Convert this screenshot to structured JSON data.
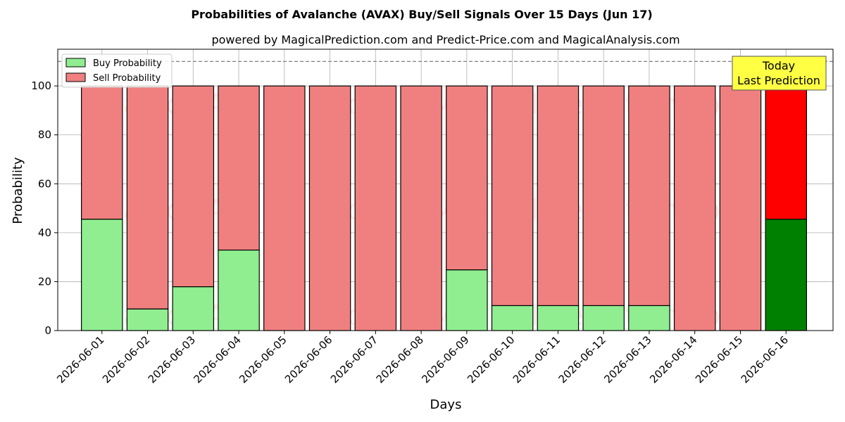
{
  "chart_data": {
    "type": "bar",
    "stacked": true,
    "title": "Probabilities of Avalanche (AVAX) Buy/Sell Signals Over 15 Days (Jun 17)",
    "subtitle": "powered by MagicalPrediction.com and Predict-Price.com and MagicalAnalysis.com",
    "xlabel": "Days",
    "ylabel": "Probability",
    "ylim": [
      0,
      115
    ],
    "yticks": [
      0,
      20,
      40,
      60,
      80,
      100
    ],
    "reference_line": 110,
    "grid": true,
    "legend_position": "top-left",
    "categories": [
      "2026-06-01",
      "2026-06-02",
      "2026-06-03",
      "2026-06-04",
      "2026-06-05",
      "2026-06-06",
      "2026-06-07",
      "2026-06-08",
      "2026-06-09",
      "2026-06-10",
      "2026-06-11",
      "2026-06-12",
      "2026-06-13",
      "2026-06-14",
      "2026-06-15",
      "2026-06-16"
    ],
    "series": [
      {
        "name": "Buy Probability",
        "color": "#90ee90",
        "highlight_color": "#008000",
        "values": [
          45.5,
          8.8,
          17.9,
          32.9,
          0,
          0,
          0,
          0,
          24.8,
          10.2,
          10.2,
          10.2,
          10.2,
          0,
          0,
          45.5
        ]
      },
      {
        "name": "Sell Probability",
        "color": "#f08080",
        "highlight_color": "#ff0000",
        "values": [
          54.5,
          91.2,
          82.1,
          67.1,
          100,
          100,
          100,
          100,
          75.2,
          89.8,
          89.8,
          89.8,
          89.8,
          100,
          100,
          54.5
        ]
      }
    ],
    "highlight_index": 15,
    "annotation": {
      "lines": [
        "Today",
        "Last Prediction"
      ],
      "background": "#ffff44"
    },
    "watermarks": [
      "MagicalAnalysis.com",
      "MagicalPrediction.com"
    ]
  }
}
